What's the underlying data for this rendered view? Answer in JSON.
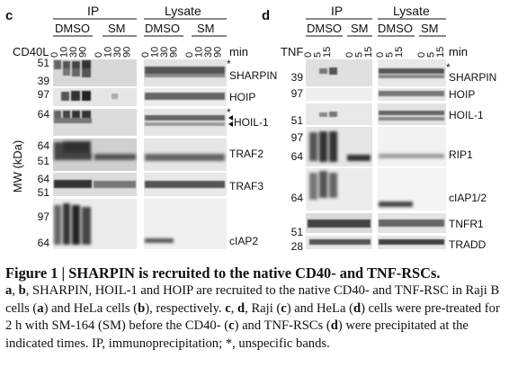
{
  "panel_c": {
    "letter": "c",
    "ip_label": "IP",
    "lysate_label": "Lysate",
    "treatment_dmso": "DMSO",
    "treatment_sm": "SM",
    "stimulus_label": "CD40L",
    "time_unit": "min",
    "timepoints": [
      "0",
      "10",
      "30",
      "90"
    ],
    "y_axis_label": "MW (kDa)",
    "mw_markers": [
      "51",
      "39",
      "97",
      "64",
      "64",
      "51",
      "64",
      "51",
      "97",
      "64"
    ],
    "blot_labels": [
      "SHARPIN",
      "HOIP",
      "HOIL-1",
      "TRAF2",
      "TRAF3",
      "cIAP2"
    ],
    "asterisks": [
      "*",
      "*"
    ]
  },
  "panel_d": {
    "letter": "d",
    "ip_label": "IP",
    "lysate_label": "Lysate",
    "treatment_dmso": "DMSO",
    "treatment_sm": "SM",
    "stimulus_label": "TNF",
    "time_unit": "min",
    "timepoints": [
      "0",
      "5",
      "15"
    ],
    "mw_markers": [
      "39",
      "97",
      "51",
      "97",
      "64",
      "64",
      "51",
      "28"
    ],
    "blot_labels": [
      "SHARPIN",
      "HOIP",
      "HOIL-1",
      "RIP1",
      "cIAP1/2",
      "TNFR1",
      "TRADD"
    ],
    "asterisks": [
      "*"
    ]
  },
  "caption": {
    "title": "Figure 1 | SHARPIN is recruited to the native CD40- and TNF-RSCs.",
    "part1_a": "a",
    "part1_sep": ", ",
    "part1_b": "b",
    "part1_text": ", SHARPIN, HOIL-1 and HOIP are recruited to the native CD40- and TNF-RSC in Raji B cells (",
    "part1_a2": "a",
    "part1_mid": ") and HeLa cells (",
    "part1_b2": "b",
    "part1_end": "), respectively. ",
    "part2_c": "c",
    "part2_sep": ", ",
    "part2_d": "d",
    "part2_text": ", Raji (",
    "part2_c2": "c",
    "part2_text2": ") and HeLa (",
    "part2_d2": "d",
    "part2_text3": ") cells were pre-treated for 2 h with SM-164 (SM) before the CD40- (",
    "part2_c3": "c",
    "part2_text4": ") and TNF-RSCs (",
    "part2_d3": "d",
    "part2_text5": ") were precipitated at the indicated times. IP, immunoprecipitation; *, unspecific bands."
  }
}
